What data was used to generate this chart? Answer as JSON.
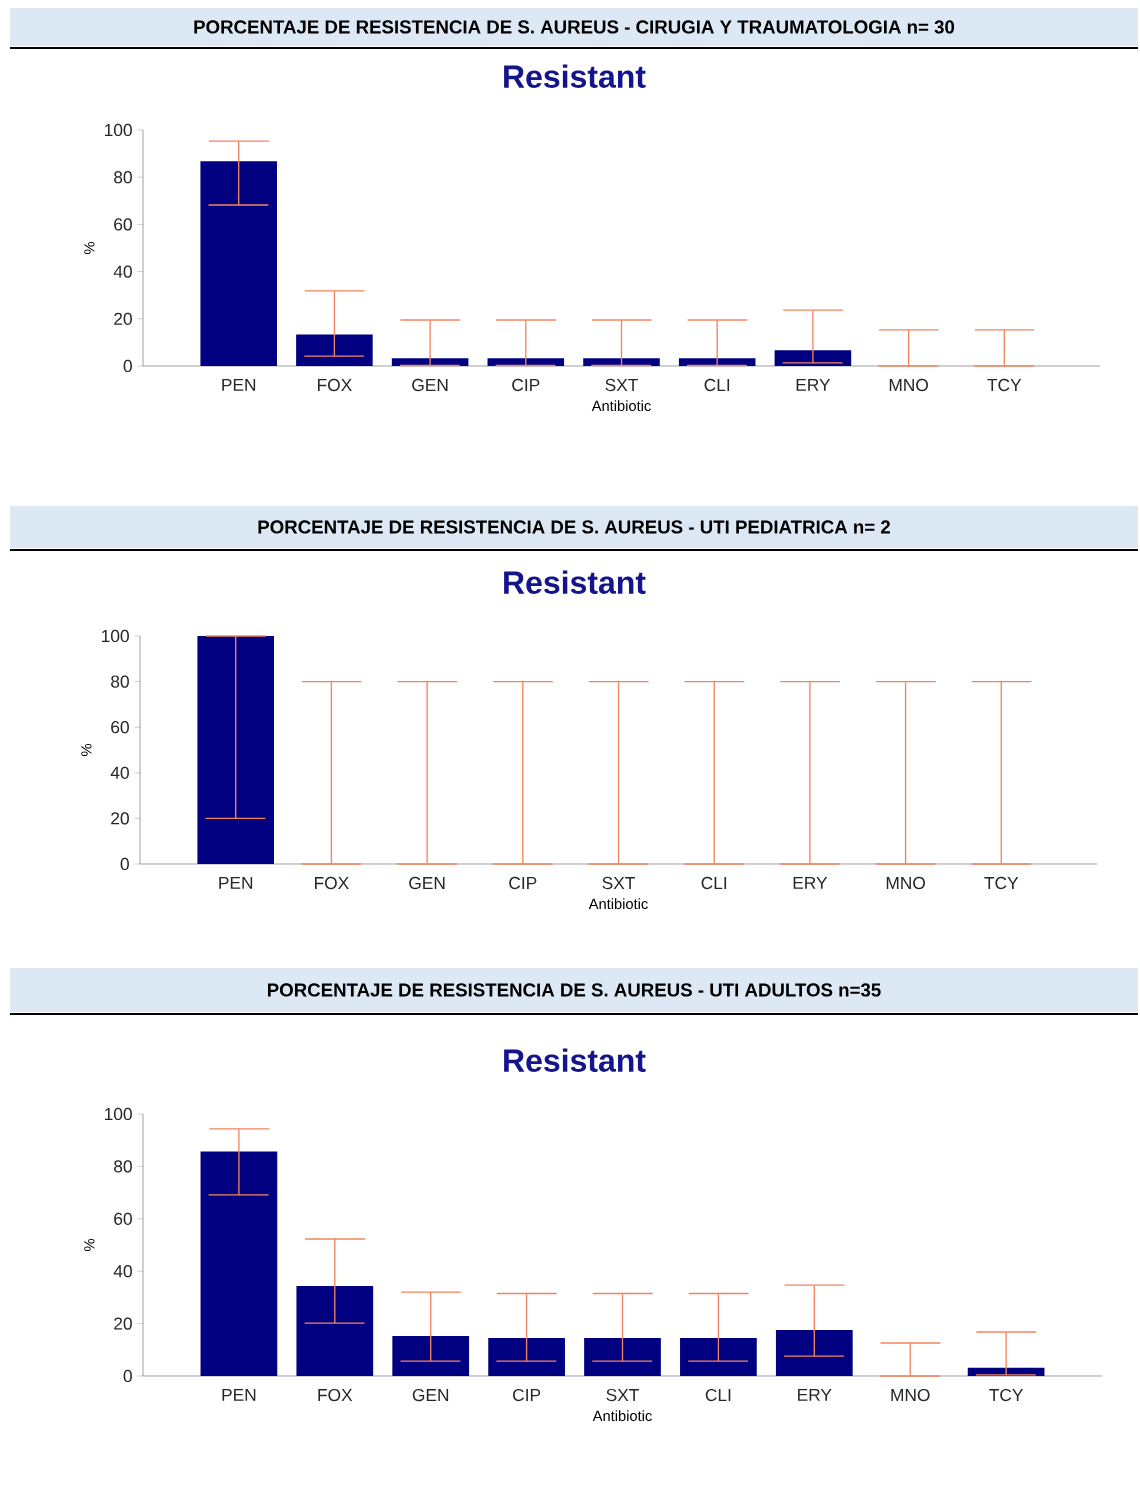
{
  "chart_data": [
    {
      "type": "bar",
      "title": "PORCENTAJE DE RESISTENCIA DE S. AUREUS - CIRUGIA Y TRAUMATOLOGIA n= 30",
      "subtitle": "Resistant",
      "xlabel": "Antibiotic",
      "ylabel": "%",
      "color": "#000080",
      "categories": [
        "PEN",
        "FOX",
        "GEN",
        "CIP",
        "SXT",
        "CLI",
        "ERY",
        "MNO",
        "TCY"
      ],
      "values": [
        86.7,
        13.3,
        3.3,
        3.3,
        3.3,
        3.3,
        6.7,
        0,
        0
      ],
      "errors": [
        [
          68.2,
          95.3
        ],
        [
          4.2,
          31.8
        ],
        [
          0.2,
          19.5
        ],
        [
          0.2,
          19.5
        ],
        [
          0.2,
          19.5
        ],
        [
          0.2,
          19.5
        ],
        [
          1.3,
          23.7
        ],
        [
          0,
          15.3
        ],
        [
          0,
          15.3
        ]
      ],
      "ylim": [
        0,
        100
      ],
      "yticks": [
        0,
        20,
        40,
        60,
        80,
        100
      ]
    },
    {
      "type": "bar",
      "title": "PORCENTAJE DE RESISTENCIA DE S. AUREUS - UTI PEDIATRICA n= 2",
      "subtitle": "Resistant",
      "xlabel": "Antibiotic",
      "ylabel": "%",
      "color": "#000080",
      "categories": [
        "PEN",
        "FOX",
        "GEN",
        "CIP",
        "SXT",
        "CLI",
        "ERY",
        "MNO",
        "TCY"
      ],
      "values": [
        100,
        0,
        0,
        0,
        0,
        0,
        0,
        0,
        0
      ],
      "errors": [
        [
          20,
          100
        ],
        [
          0,
          80
        ],
        [
          0,
          80
        ],
        [
          0,
          80
        ],
        [
          0,
          80
        ],
        [
          0,
          80
        ],
        [
          0,
          80
        ],
        [
          0,
          80
        ],
        [
          0,
          80
        ]
      ],
      "ylim": [
        0,
        100
      ],
      "yticks": [
        0,
        20,
        40,
        60,
        80,
        100
      ]
    },
    {
      "type": "bar",
      "title": "PORCENTAJE DE RESISTENCIA DE S. AUREUS - UTI ADULTOS n=35",
      "subtitle": "Resistant",
      "xlabel": "Antibiotic",
      "ylabel": "%",
      "color": "#000080",
      "categories": [
        "PEN",
        "FOX",
        "GEN",
        "CIP",
        "SXT",
        "CLI",
        "ERY",
        "MNO",
        "TCY"
      ],
      "values": [
        85.7,
        34.3,
        15.3,
        14.5,
        14.5,
        14.5,
        17.6,
        0,
        3.1
      ],
      "errors": [
        [
          69.1,
          94.3
        ],
        [
          20.2,
          52.3
        ],
        [
          5.7,
          32
        ],
        [
          5.7,
          31.5
        ],
        [
          5.7,
          31.5
        ],
        [
          5.7,
          31.5
        ],
        [
          7.6,
          34.7
        ],
        [
          0,
          12.6
        ],
        [
          0.4,
          16.8
        ]
      ],
      "ylim": [
        0,
        100
      ],
      "yticks": [
        0,
        20,
        40,
        60,
        80,
        100
      ]
    }
  ]
}
